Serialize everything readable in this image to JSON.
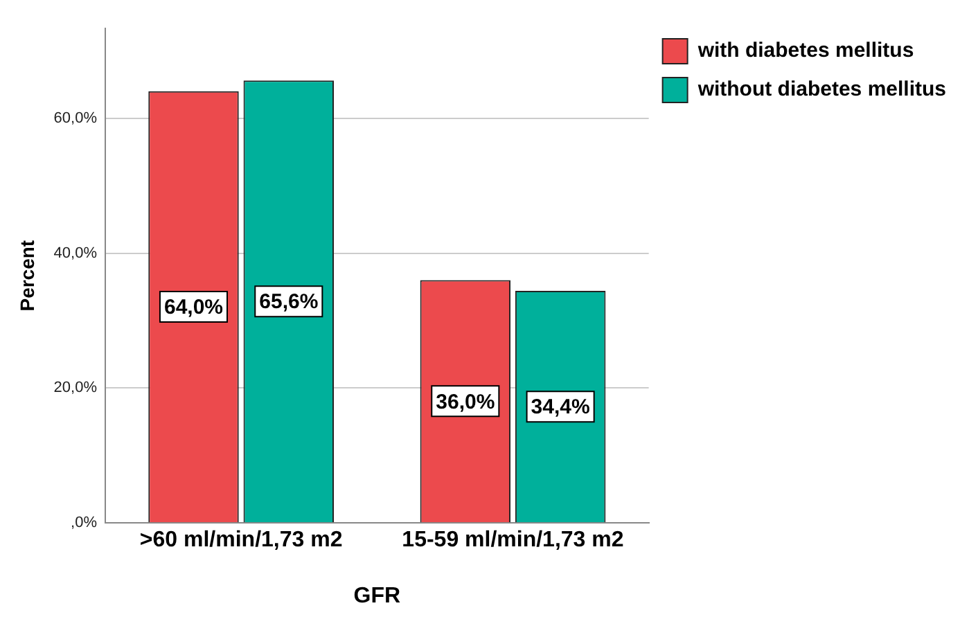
{
  "chart_data": {
    "type": "bar",
    "xlabel": "GFR",
    "ylabel": "Percent",
    "categories": [
      ">60 ml/min/1,73 m2",
      "15-59 ml/min/1,73 m2"
    ],
    "series": [
      {
        "name": "with diabetes mellitus",
        "color": "#ec4a4d",
        "values": [
          64.0,
          36.0
        ],
        "value_labels": [
          "64,0%",
          "36,0%"
        ]
      },
      {
        "name": "without diabetes mellitus",
        "color": "#00b09b",
        "values": [
          65.6,
          34.4
        ],
        "value_labels": [
          "65,6%",
          "34,4%"
        ]
      }
    ],
    "ylim": [
      0,
      73.3
    ],
    "yticks": [
      {
        "value": 0,
        "label": ",0%"
      },
      {
        "value": 20,
        "label": "20,0%"
      },
      {
        "value": 40,
        "label": "40,0%"
      },
      {
        "value": 60,
        "label": "60,0%"
      }
    ],
    "grid": "y",
    "legend": "top right"
  }
}
